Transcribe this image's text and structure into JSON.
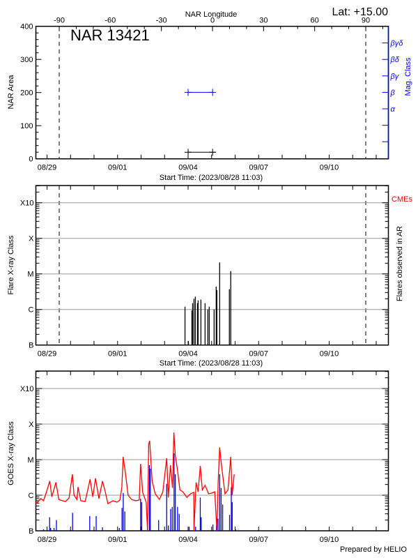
{
  "header": {
    "region": "NAR 13421",
    "latitude": "Lat: +15.00"
  },
  "footer": {
    "credit": "Prepared by HELIO"
  },
  "colors": {
    "axis": "#000000",
    "grid": "#999999",
    "goes_long": "#ff0000",
    "goes_short": "#0000ff",
    "mag_class": "#0000ff",
    "cme": "#ff0000"
  },
  "chart_data": [
    {
      "type": "scatter",
      "xlabel": "Start Time: (2023/08/28 11:03)",
      "ylabel": "NAR Area",
      "y2label": "Mag. Class",
      "x2label": "NAR Longitude",
      "x_ticks": [
        "08/29",
        "09/01",
        "09/04",
        "09/07",
        "09/10"
      ],
      "x_range": [
        "08/28 11:03",
        "09/12 12:00"
      ],
      "ylim": [
        0,
        400
      ],
      "y_ticks": [
        "0",
        "100",
        "200",
        "300",
        "400"
      ],
      "x2_ticks": [
        "-90",
        "-60",
        "-30",
        "0",
        "30",
        "60",
        "90"
      ],
      "x2lim": [
        -90,
        90
      ],
      "mag_class_ticks": [
        "α",
        "β",
        "βγ",
        "βδ",
        "βγδ"
      ],
      "limb_longitudes": [
        -90,
        90
      ],
      "area_series": {
        "x": [
          "09/04 00:00",
          "09/05 01:00"
        ],
        "y": [
          20,
          20
        ],
        "color": "#000000"
      },
      "mag_class_series": {
        "x": [
          "09/04 00:00",
          "09/05 01:00"
        ],
        "y": [
          "β",
          "β"
        ],
        "color": "#0000ff"
      },
      "grid": false
    },
    {
      "type": "bar",
      "xlabel": "Start Time: (2023/08/28 11:03)",
      "ylabel": "Flare X-ray Class",
      "y2label": "Flares observed in AR",
      "annotation": "CMEs",
      "x_ticks": [
        "08/29",
        "09/01",
        "09/04",
        "09/07",
        "09/10"
      ],
      "y_ticks": [
        "B",
        "C",
        "M",
        "X",
        "X10"
      ],
      "yscale": "log",
      "ylim": [
        1e-07,
        0.003
      ],
      "grid": true,
      "flares": [
        {
          "t": "09/03 20:50",
          "flux": 1.2e-06
        },
        {
          "t": "09/04 00:20",
          "flux": 1.3e-07
        },
        {
          "t": "09/04 03:53",
          "flux": 9.4e-07
        },
        {
          "t": "09/04 04:35",
          "flux": 1.5e-06
        },
        {
          "t": "09/04 06:00",
          "flux": 2e-06
        },
        {
          "t": "09/04 07:25",
          "flux": 2.3e-06
        },
        {
          "t": "09/04 09:35",
          "flux": 1.5e-06
        },
        {
          "t": "09/04 10:15",
          "flux": 1.8e-06
        },
        {
          "t": "09/04 13:05",
          "flux": 1.9e-06
        },
        {
          "t": "09/04 17:20",
          "flux": 1.5e-06
        },
        {
          "t": "09/04 20:10",
          "flux": 1e-06
        },
        {
          "t": "09/04 21:35",
          "flux": 1.2e-06
        },
        {
          "t": "09/05 02:33",
          "flux": 1e-06
        },
        {
          "t": "09/05 04:40",
          "flux": 4.4e-06
        },
        {
          "t": "09/05 05:23",
          "flux": 3.5e-06
        },
        {
          "t": "09/05 08:12",
          "flux": 2.1e-05
        },
        {
          "t": "09/05 18:07",
          "flux": 3.7e-06
        },
        {
          "t": "09/05 19:32",
          "flux": 1.2e-05
        }
      ]
    },
    {
      "type": "line",
      "ylabel": "GOES X-ray Class",
      "x_ticks": [
        "08/29",
        "09/01",
        "09/04",
        "09/07",
        "09/10"
      ],
      "y_ticks": [
        "B",
        "C",
        "M",
        "X",
        "X10"
      ],
      "yscale": "log",
      "ylim": [
        1e-07,
        0.003
      ],
      "grid": true,
      "series": [
        {
          "color": "#ff0000",
          "points": [
            [
              "08/28 12:00",
              6e-07
            ],
            [
              "08/28 14:30",
              6.4e-07
            ],
            [
              "08/28 17:34",
              8e-07
            ],
            [
              "08/28 20:24",
              7e-07
            ],
            [
              "08/28 23:17",
              1.2e-06
            ],
            [
              "08/29 02:46",
              2.5e-06
            ],
            [
              "08/29 04:54",
              9e-07
            ],
            [
              "08/29 09:07",
              2.3e-06
            ],
            [
              "08/29 12:00",
              7.6e-07
            ],
            [
              "08/29 15:36",
              7e-07
            ],
            [
              "08/29 19:00",
              6.7e-07
            ],
            [
              "08/29 22:30",
              8.3e-07
            ],
            [
              "08/30 01:55",
              3.9e-06
            ],
            [
              "08/30 03:35",
              1e-06
            ],
            [
              "08/30 06:30",
              7.6e-07
            ],
            [
              "08/30 07:40",
              1.7e-06
            ],
            [
              "08/30 10:30",
              7e-07
            ],
            [
              "08/30 15:00",
              6.7e-07
            ],
            [
              "08/30 19:55",
              2.8e-06
            ],
            [
              "08/30 22:45",
              9e-07
            ],
            [
              "08/31 01:30",
              3e-06
            ],
            [
              "08/31 05:00",
              8e-07
            ],
            [
              "08/31 08:35",
              2.5e-06
            ],
            [
              "08/31 11:25",
              1.25e-06
            ],
            [
              "08/31 14:10",
              5.8e-07
            ],
            [
              "08/31 19:10",
              7e-07
            ],
            [
              "08/31 23:30",
              6.4e-07
            ],
            [
              "09/01 02:20",
              7.3e-07
            ],
            [
              "09/01 04:20",
              1.6e-06
            ],
            [
              "09/01 05:45",
              1.2e-05
            ],
            [
              "09/01 07:55",
              4.4e-06
            ],
            [
              "09/01 10:45",
              1e-06
            ],
            [
              "09/01 14:20",
              7.6e-07
            ],
            [
              "09/01 18:30",
              7e-07
            ],
            [
              "09/01 22:05",
              7.3e-07
            ],
            [
              "09/01 23:30",
              7.6e-06
            ],
            [
              "09/02 01:40",
              1.2e-06
            ],
            [
              "09/02 05:10",
              6.4e-07
            ],
            [
              "09/02 06:35",
              1e-07
            ],
            [
              "09/02 07:47",
              2.7e-05
            ],
            [
              "09/02 08:43",
              3.4e-05
            ],
            [
              "09/02 11:20",
              2.5e-06
            ],
            [
              "09/02 14:25",
              1.1e-06
            ],
            [
              "09/02 18:40",
              7.6e-07
            ],
            [
              "09/02 22:10",
              1.25e-06
            ],
            [
              "09/03 02:12",
              1.1e-05
            ],
            [
              "09/03 03:50",
              8.7e-07
            ],
            [
              "09/03 06:00",
              7e-06
            ],
            [
              "09/03 08:05",
              1.6e-06
            ],
            [
              "09/03 09:30",
              5.8e-05
            ],
            [
              "09/03 10:55",
              1.3e-05
            ],
            [
              "09/03 13:00",
              5.5e-06
            ],
            [
              "09/03 15:40",
              1.4e-06
            ],
            [
              "09/03 18:40",
              1.25e-06
            ],
            [
              "09/03 22:45",
              8.7e-07
            ],
            [
              "09/04 02:30",
              1.1e-06
            ],
            [
              "09/04 05:50",
              1.2e-06
            ],
            [
              "09/04 06:00",
              1e-07
            ],
            [
              "09/04 08:10",
              2.3e-06
            ],
            [
              "09/04 10:15",
              1.25e-06
            ],
            [
              "09/04 12:25",
              6.7e-06
            ],
            [
              "09/04 14:30",
              1.4e-06
            ],
            [
              "09/04 17:20",
              1.9e-06
            ],
            [
              "09/04 20:50",
              1.1e-06
            ],
            [
              "09/05 00:25",
              1.15e-06
            ],
            [
              "09/05 03:15",
              1.25e-06
            ],
            [
              "09/05 05:20",
              1e-07
            ],
            [
              "09/05 06:45",
              2.5e-06
            ],
            [
              "09/05 08:12",
              2.2e-05
            ],
            [
              "09/05 10:20",
              6e-06
            ],
            [
              "09/05 13:40",
              1.1e-06
            ],
            [
              "09/05 16:42",
              1.4e-06
            ],
            [
              "09/05 19:32",
              1.2e-05
            ],
            [
              "09/05 20:57",
              1e-06
            ],
            [
              "09/05 23:05",
              3.9e-06
            ]
          ]
        },
        {
          "color": "#0000ff",
          "points": [
            [
              "08/28 20:25",
              1.1e-07
            ],
            [
              "08/29 02:40",
              2.4e-07
            ],
            [
              "08/29 03:40",
              1.2e-07
            ],
            [
              "08/29 07:10",
              1.2e-07
            ],
            [
              "08/29 09:35",
              2e-07
            ],
            [
              "08/30 02:05",
              3.2e-07
            ],
            [
              "08/30 19:35",
              2.6e-07
            ],
            [
              "08/31 02:10",
              2.6e-07
            ],
            [
              "08/31 08:35",
              1.25e-07
            ],
            [
              "09/01 01:45",
              1.2e-07
            ],
            [
              "09/01 04:35",
              4.4e-07
            ],
            [
              "09/01 05:50",
              1.16e-06
            ],
            [
              "09/01 07:25",
              3.5e-07
            ],
            [
              "09/01 23:30",
              8e-07
            ],
            [
              "09/02 00:40",
              6.4e-07
            ],
            [
              "09/02 08:30",
              7e-06
            ],
            [
              "09/02 09:25",
              5.6e-06
            ],
            [
              "09/02 17:55",
              2e-07
            ],
            [
              "09/03 02:10",
              2.1e-06
            ],
            [
              "09/03 03:50",
              1.4e-07
            ],
            [
              "09/03 06:10",
              4.1e-07
            ],
            [
              "09/03 07:50",
              4.7e-07
            ],
            [
              "09/03 09:40",
              1.5e-05
            ],
            [
              "09/03 10:55",
              3.9e-06
            ],
            [
              "09/03 13:15",
              4.7e-07
            ],
            [
              "09/03 14:55",
              3e-07
            ],
            [
              "09/04 01:05",
              1.3e-07
            ],
            [
              "09/04 07:40",
              1.3e-07
            ],
            [
              "09/04 12:25",
              8.6e-07
            ],
            [
              "09/04 13:20",
              2.4e-07
            ],
            [
              "09/05 01:20",
              1.5e-07
            ],
            [
              "09/05 04:55",
              1.4e-07
            ],
            [
              "09/05 06:35",
              2.2e-07
            ],
            [
              "09/05 08:15",
              3.9e-06
            ],
            [
              "09/05 09:40",
              1.6e-06
            ],
            [
              "09/05 11:15",
              5.5e-07
            ],
            [
              "09/05 18:20",
              2.8e-07
            ],
            [
              "09/05 20:05",
              1.7e-06
            ],
            [
              "09/05 21:00",
              6.4e-07
            ],
            [
              "09/06 00:20",
              1.1e-07
            ]
          ]
        }
      ]
    }
  ]
}
